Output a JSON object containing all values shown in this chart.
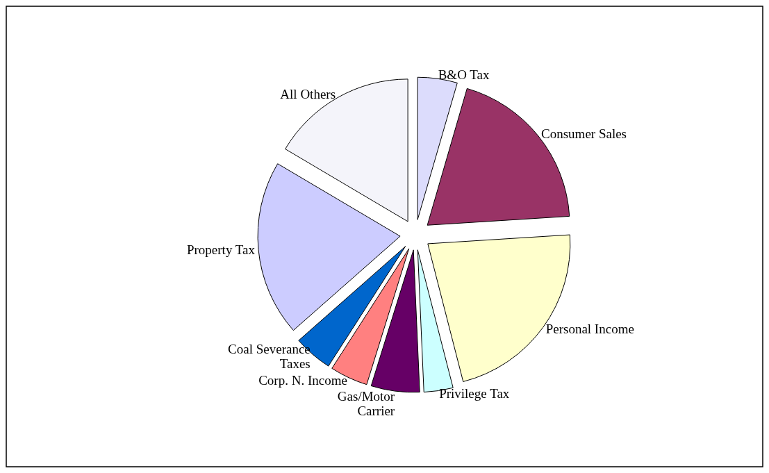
{
  "chart_data": {
    "type": "pie",
    "categories": [
      "B&O Tax",
      "Consumer Sales",
      "Personal Income",
      "Privilege Tax",
      "Gas/Motor Carrier",
      "Corp. N. Income",
      "Coal Severance Taxes",
      "Property Tax",
      "All Others"
    ],
    "values": [
      4.5,
      19.5,
      22,
      3.3,
      5.5,
      4.3,
      4.4,
      20,
      16.5
    ],
    "colors": [
      "#dcdcfc",
      "#993366",
      "#ffffcc",
      "#ccffff",
      "#660066",
      "#ff8080",
      "#0066cc",
      "#ccccff",
      "#f4f4fa"
    ],
    "legend": false
  }
}
